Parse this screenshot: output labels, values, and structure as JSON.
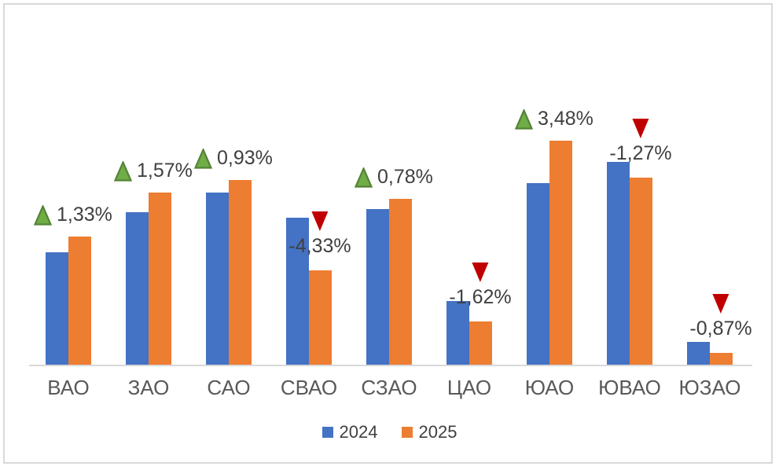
{
  "chart_data": {
    "type": "bar",
    "title": "",
    "xlabel": "",
    "ylabel": "",
    "value_axis_visible": false,
    "ylim": [
      0,
      446
    ],
    "grid": false,
    "legend_position": "bottom",
    "categories": [
      "ВАО",
      "ЗАО",
      "САО",
      "СВАО",
      "СЗАО",
      "ЦАО",
      "ЮАО",
      "ЮВАО",
      "ЮЗАО"
    ],
    "series": [
      {
        "name": "2024",
        "color": "#4472C4",
        "values": [
          143,
          194,
          219,
          187,
          198,
          81,
          231,
          258,
          29
        ]
      },
      {
        "name": "2025",
        "color": "#ED7D31",
        "values": [
          163,
          219,
          235,
          120,
          211,
          55,
          285,
          238,
          15
        ]
      }
    ],
    "annotations": [
      {
        "category": "ВАО",
        "label": "1,33%",
        "direction": "up"
      },
      {
        "category": "ЗАО",
        "label": "1,57%",
        "direction": "up"
      },
      {
        "category": "САО",
        "label": "0,93%",
        "direction": "up"
      },
      {
        "category": "СВАО",
        "label": "-4,33%",
        "direction": "down"
      },
      {
        "category": "СЗАО",
        "label": "0,78%",
        "direction": "up"
      },
      {
        "category": "ЦАО",
        "label": "-1,62%",
        "direction": "down"
      },
      {
        "category": "ЮАО",
        "label": "3,48%",
        "direction": "up"
      },
      {
        "category": "ЮВАО",
        "label": "-1,27%",
        "direction": "down"
      },
      {
        "category": "ЮЗАО",
        "label": "-0,87%",
        "direction": "down"
      }
    ]
  },
  "colors": {
    "bar_2024": "#4472C4",
    "bar_2025": "#ED7D31",
    "up_arrow_fill": "#70AD47",
    "up_arrow_border": "#548235",
    "down_arrow_fill": "#C00000",
    "annotation_text": "#404040",
    "category_text": "#595959",
    "axis_line": "#D9D9D9",
    "frame_border": "#D9D9D9"
  }
}
